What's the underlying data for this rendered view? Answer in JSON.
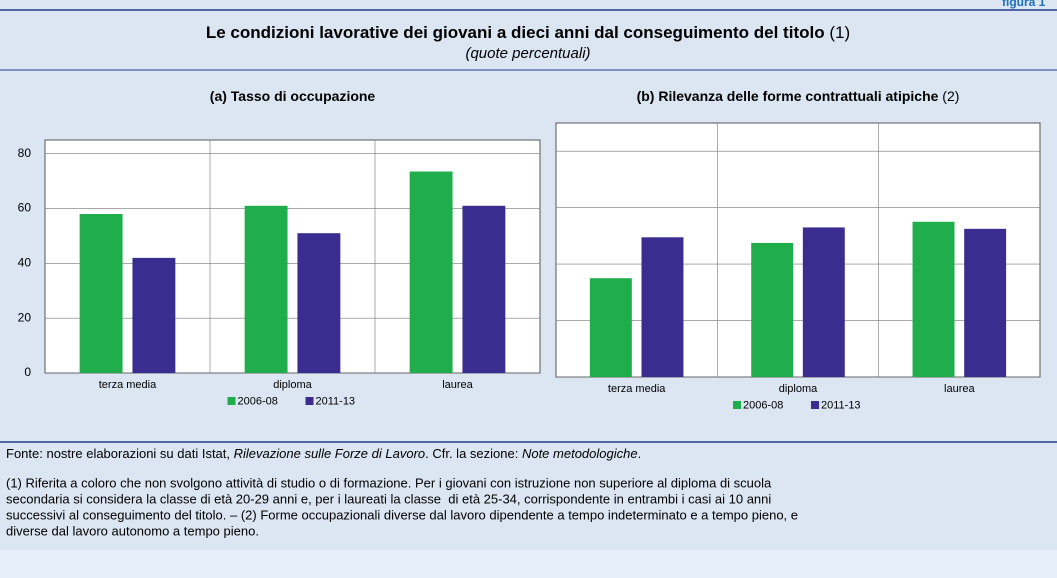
{
  "figure_label": "figura 1",
  "title": "Le condizioni lavorative dei giovani a dieci anni dal conseguimento del titolo",
  "title_note": "(1)",
  "subtitle": "(quote percentuali)",
  "chart_data": [
    {
      "type": "bar",
      "title": "(a) Tasso di occupazione",
      "categories": [
        "terza media",
        "diploma",
        "laurea"
      ],
      "series": [
        {
          "name": "2006-08",
          "color": "#1fae4b",
          "values": [
            58,
            61,
            73.5
          ]
        },
        {
          "name": "2011-13",
          "color": "#3a2d8f",
          "values": [
            42,
            51,
            61
          ]
        }
      ],
      "ylim": [
        0,
        85
      ],
      "yticks": [
        0,
        20,
        40,
        60,
        80
      ],
      "axis_side": "left",
      "grid": true
    },
    {
      "type": "bar",
      "title": "(b) Rilevanza delle forme contrattuali atipiche",
      "title_note": "(2)",
      "categories": [
        "terza media",
        "diploma",
        "laurea"
      ],
      "series": [
        {
          "name": "2006-08",
          "color": "#1fae4b",
          "values": [
            35,
            47.5,
            55
          ]
        },
        {
          "name": "2011-13",
          "color": "#3a2d8f",
          "values": [
            49.5,
            53,
            52.5
          ]
        }
      ],
      "ylim": [
        0,
        90
      ],
      "yticks": [
        0,
        20,
        40,
        60,
        80
      ],
      "axis_side": "right",
      "grid": true
    }
  ],
  "source": [
    "Fonte: nostre elaborazioni su dati Istat, ",
    "Rilevazione sulle Forze di Lavoro",
    ". Cfr. la sezione: ",
    "Note metodologiche",
    "."
  ],
  "notes": [
    "(1) Riferita a coloro che non svolgono attività di studio o di formazione. Per i giovani con istruzione non superiore al diploma di scuola",
    "secondaria si considera la classe di età 20-29 anni e, per i laureati la classe  di età 25-34, corrispondente in entrambi i casi ai 10 anni",
    "successivi al conseguimento del titolo. – (2) Forme occupazionali diverse dal lavoro dipendente a tempo indeterminato e a tempo pieno, e",
    "diverse dal lavoro autonomo a tempo pieno."
  ]
}
